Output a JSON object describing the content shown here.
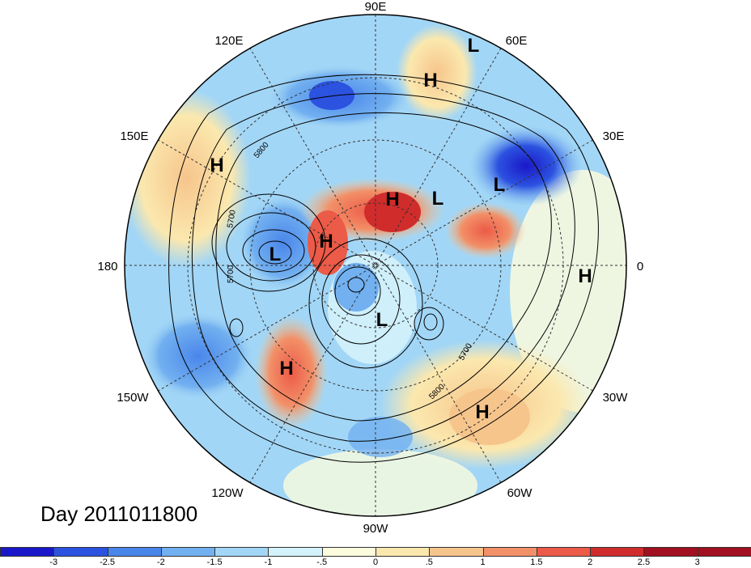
{
  "title": "Day 2011011800",
  "longitude_labels": [
    "90E",
    "60E",
    "30E",
    "0",
    "30W",
    "60W",
    "90W",
    "120W",
    "150W",
    "180",
    "150E",
    "120E"
  ],
  "contour_labels": [
    "5800",
    "5700",
    "5700",
    "5700",
    "5800"
  ],
  "pressure_systems": [
    "L",
    "H",
    "H",
    "L",
    "L",
    "H",
    "H",
    "L",
    "H",
    "H",
    "L",
    "H",
    "H"
  ],
  "colorbar": {
    "ticks": [
      "-3",
      "-2.5",
      "-2",
      "-1.5",
      "-1",
      "-.5",
      "0",
      ".5",
      "1",
      "1.5",
      "2",
      "2.5",
      "3"
    ],
    "colors": [
      "#1a18c8",
      "#2c52e0",
      "#4a86ea",
      "#72b0f0",
      "#a2d6f6",
      "#d4f2fb",
      "#fbfcde",
      "#fbe8ae",
      "#f6c58c",
      "#f29068",
      "#ec5a48",
      "#d02c2c",
      "#a01020",
      "#a01020"
    ]
  }
}
